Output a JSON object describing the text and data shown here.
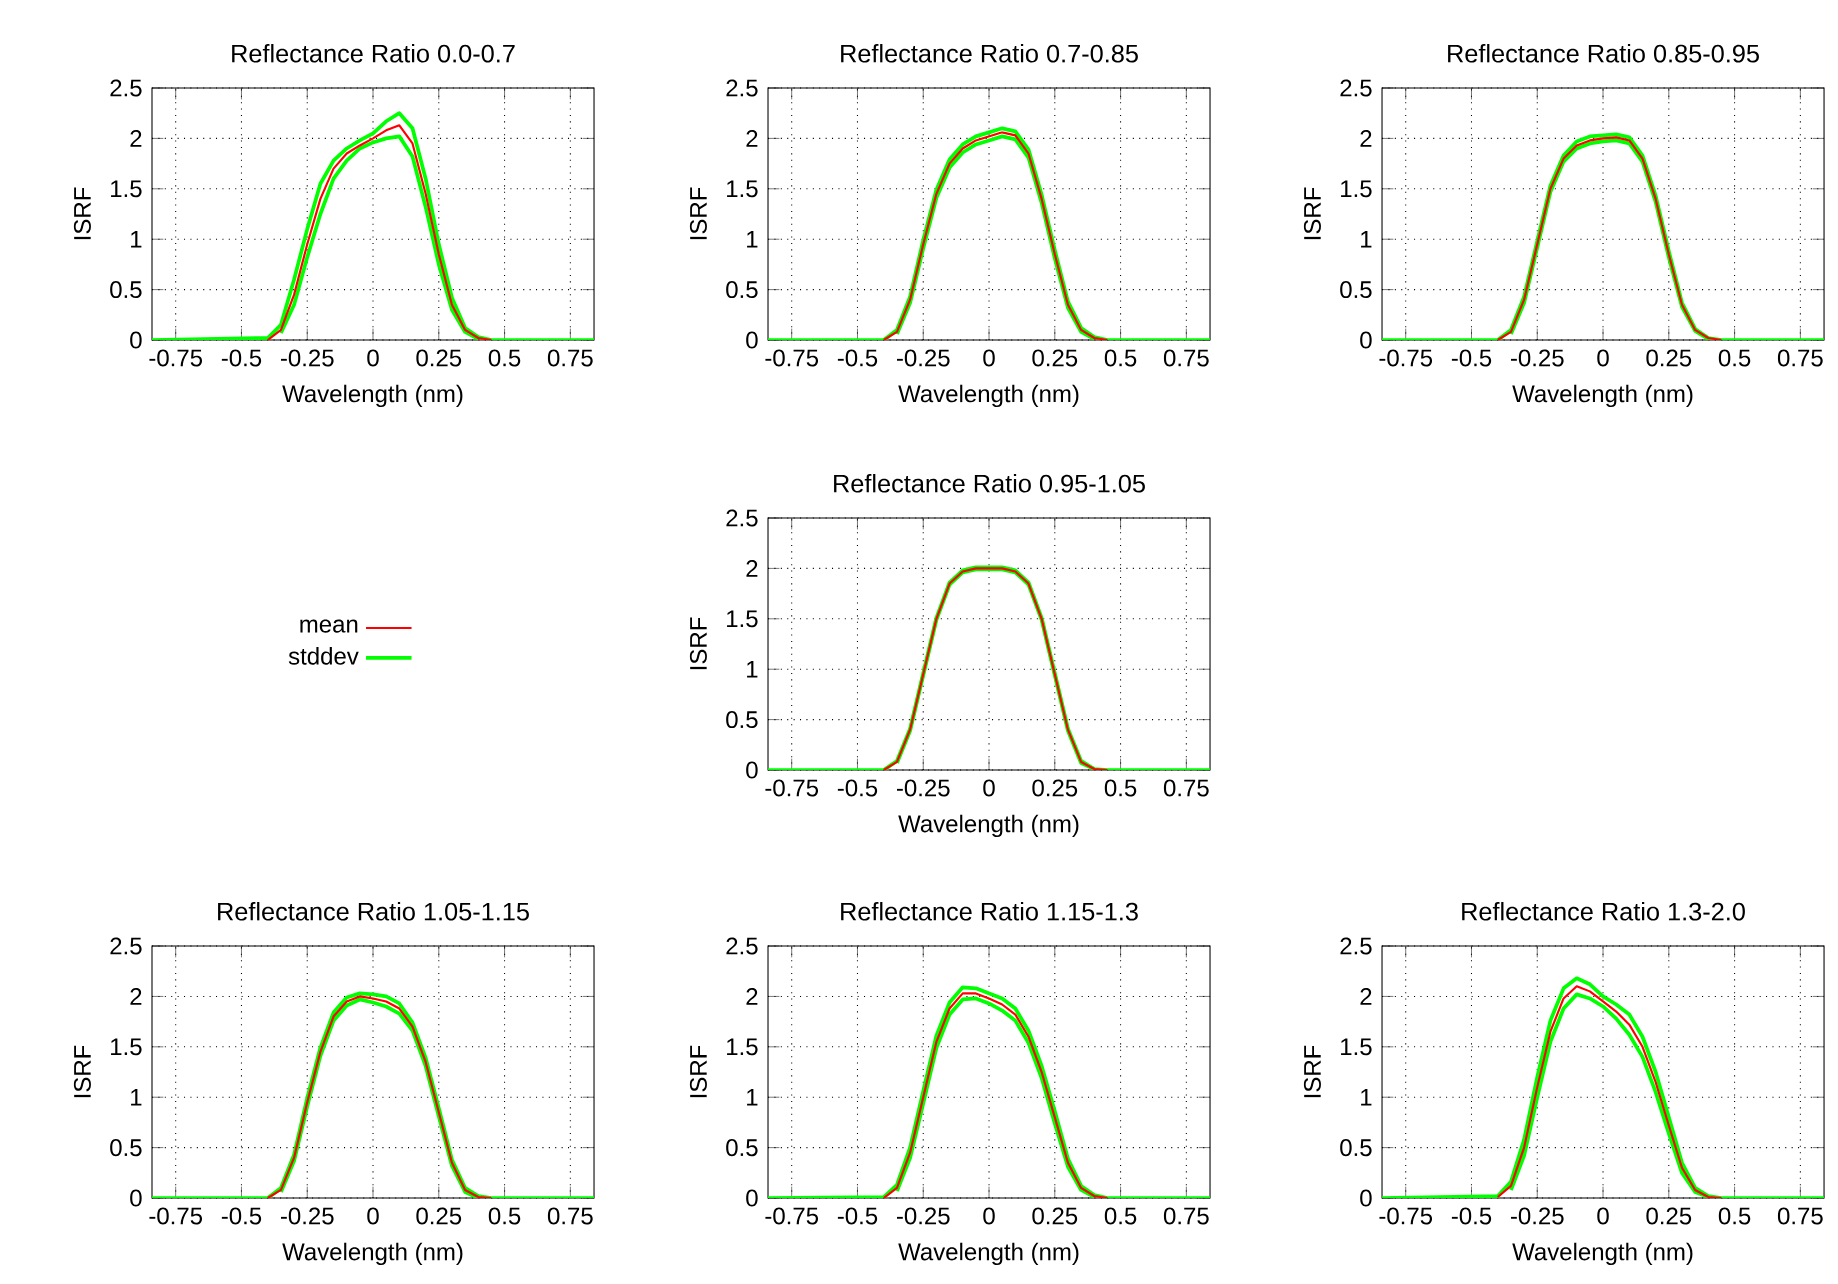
{
  "chart_data": [
    {
      "type": "line",
      "title": "Reflectance Ratio 0.0-0.7",
      "xlabel": "Wavelength (nm)",
      "ylabel": "ISRF",
      "xlim": [
        -0.84,
        0.84
      ],
      "ylim": [
        0,
        2.5
      ],
      "xticks": [
        -0.75,
        -0.5,
        -0.25,
        0,
        0.25,
        0.5,
        0.75
      ],
      "yticks": [
        0,
        0.5,
        1,
        1.5,
        2,
        2.5
      ],
      "grid": true,
      "marker": "none",
      "line_style": "solid",
      "x": [
        -0.84,
        -0.4,
        -0.35,
        -0.3,
        -0.25,
        -0.2,
        -0.15,
        -0.1,
        -0.05,
        0,
        0.05,
        0.1,
        0.15,
        0.2,
        0.25,
        0.3,
        0.35,
        0.4,
        0.45,
        0.84
      ],
      "series": [
        {
          "color": "#ff0000",
          "x": [
            -0.4,
            -0.35,
            -0.3,
            -0.25,
            -0.2,
            -0.15,
            -0.1,
            -0.05,
            0,
            0.05,
            0.1,
            0.15,
            0.2,
            0.25,
            0.3,
            0.35,
            0.4,
            0.45
          ],
          "values": [
            0,
            0.1,
            0.45,
            0.95,
            1.4,
            1.7,
            1.85,
            1.93,
            2.0,
            2.08,
            2.13,
            1.95,
            1.45,
            0.85,
            0.35,
            0.1,
            0.02,
            0
          ]
        },
        {
          "color": "#00ff00",
          "values": [
            0,
            0.02,
            0.15,
            0.6,
            1.1,
            1.55,
            1.78,
            1.9,
            1.98,
            2.05,
            2.17,
            2.25,
            2.1,
            1.6,
            0.95,
            0.42,
            0.12,
            0.03,
            0,
            0
          ]
        },
        {
          "color": "#00ff00",
          "x": [
            -0.35,
            -0.3,
            -0.25,
            -0.2,
            -0.15,
            -0.1,
            -0.05,
            0,
            0.05,
            0.1,
            0.15,
            0.2,
            0.25,
            0.3,
            0.35,
            0.4
          ],
          "values": [
            0.07,
            0.35,
            0.82,
            1.25,
            1.6,
            1.78,
            1.9,
            1.96,
            2.0,
            2.02,
            1.82,
            1.32,
            0.75,
            0.3,
            0.08,
            0.01
          ]
        }
      ]
    },
    {
      "type": "line",
      "title": "Reflectance Ratio 0.7-0.85",
      "xlabel": "Wavelength (nm)",
      "ylabel": "ISRF",
      "xlim": [
        -0.84,
        0.84
      ],
      "ylim": [
        0,
        2.5
      ],
      "xticks": [
        -0.75,
        -0.5,
        -0.25,
        0,
        0.25,
        0.5,
        0.75
      ],
      "yticks": [
        0,
        0.5,
        1,
        1.5,
        2,
        2.5
      ],
      "grid": true,
      "marker": "none",
      "line_style": "solid",
      "x": [
        -0.84,
        -0.4,
        -0.35,
        -0.3,
        -0.25,
        -0.2,
        -0.15,
        -0.1,
        -0.05,
        0,
        0.05,
        0.1,
        0.15,
        0.2,
        0.25,
        0.3,
        0.35,
        0.4,
        0.45,
        0.84
      ],
      "series": [
        {
          "color": "#ff0000",
          "x": [
            -0.4,
            -0.35,
            -0.3,
            -0.25,
            -0.2,
            -0.15,
            -0.1,
            -0.05,
            0,
            0.05,
            0.1,
            0.15,
            0.2,
            0.25,
            0.3,
            0.35,
            0.4,
            0.45
          ],
          "values": [
            0,
            0.08,
            0.4,
            0.95,
            1.45,
            1.75,
            1.9,
            1.98,
            2.02,
            2.06,
            2.03,
            1.85,
            1.4,
            0.85,
            0.35,
            0.1,
            0.02,
            0
          ]
        },
        {
          "color": "#00ff00",
          "values": [
            0,
            0,
            0.1,
            0.43,
            0.99,
            1.49,
            1.79,
            1.94,
            2.02,
            2.06,
            2.1,
            2.07,
            1.89,
            1.44,
            0.89,
            0.38,
            0.12,
            0.03,
            0,
            0
          ]
        },
        {
          "color": "#00ff00",
          "x": [
            -0.35,
            -0.3,
            -0.25,
            -0.2,
            -0.15,
            -0.1,
            -0.05,
            0,
            0.05,
            0.1,
            0.15,
            0.2,
            0.25,
            0.3,
            0.35,
            0.4
          ],
          "values": [
            0.06,
            0.37,
            0.91,
            1.41,
            1.71,
            1.86,
            1.94,
            1.98,
            2.02,
            1.99,
            1.81,
            1.36,
            0.81,
            0.32,
            0.08,
            0.01
          ]
        }
      ]
    },
    {
      "type": "line",
      "title": "Reflectance Ratio 0.85-0.95",
      "xlabel": "Wavelength (nm)",
      "ylabel": "ISRF",
      "xlim": [
        -0.84,
        0.84
      ],
      "ylim": [
        0,
        2.5
      ],
      "xticks": [
        -0.75,
        -0.5,
        -0.25,
        0,
        0.25,
        0.5,
        0.75
      ],
      "yticks": [
        0,
        0.5,
        1,
        1.5,
        2,
        2.5
      ],
      "grid": true,
      "marker": "none",
      "line_style": "solid",
      "x": [
        -0.84,
        -0.4,
        -0.35,
        -0.3,
        -0.25,
        -0.2,
        -0.15,
        -0.1,
        -0.05,
        0,
        0.05,
        0.1,
        0.15,
        0.2,
        0.25,
        0.3,
        0.35,
        0.4,
        0.45,
        0.84
      ],
      "series": [
        {
          "color": "#ff0000",
          "x": [
            -0.4,
            -0.35,
            -0.3,
            -0.25,
            -0.2,
            -0.15,
            -0.1,
            -0.05,
            0,
            0.05,
            0.1,
            0.15,
            0.2,
            0.25,
            0.3,
            0.35,
            0.4,
            0.45
          ],
          "values": [
            0,
            0.08,
            0.4,
            0.95,
            1.5,
            1.8,
            1.93,
            1.98,
            2.0,
            2.01,
            1.98,
            1.8,
            1.4,
            0.85,
            0.35,
            0.1,
            0.02,
            0
          ]
        },
        {
          "color": "#00ff00",
          "values": [
            0,
            0,
            0.1,
            0.43,
            0.98,
            1.53,
            1.83,
            1.97,
            2.02,
            2.03,
            2.04,
            2.01,
            1.83,
            1.43,
            0.88,
            0.37,
            0.11,
            0.02,
            0,
            0
          ]
        },
        {
          "color": "#00ff00",
          "x": [
            -0.35,
            -0.3,
            -0.25,
            -0.2,
            -0.15,
            -0.1,
            -0.05,
            0,
            0.05,
            0.1,
            0.15,
            0.2,
            0.25,
            0.3,
            0.35,
            0.4
          ],
          "values": [
            0.06,
            0.37,
            0.92,
            1.47,
            1.77,
            1.9,
            1.95,
            1.97,
            1.98,
            1.95,
            1.77,
            1.37,
            0.82,
            0.33,
            0.09,
            0.01
          ]
        }
      ]
    },
    {
      "type": "line",
      "title": "Reflectance Ratio 0.95-1.05",
      "xlabel": "Wavelength (nm)",
      "ylabel": "ISRF",
      "xlim": [
        -0.84,
        0.84
      ],
      "ylim": [
        0,
        2.5
      ],
      "xticks": [
        -0.75,
        -0.5,
        -0.25,
        0,
        0.25,
        0.5,
        0.75
      ],
      "yticks": [
        0,
        0.5,
        1,
        1.5,
        2,
        2.5
      ],
      "grid": true,
      "marker": "none",
      "line_style": "solid",
      "legend": "left",
      "x": [
        -0.84,
        -0.4,
        -0.35,
        -0.3,
        -0.25,
        -0.2,
        -0.15,
        -0.1,
        -0.05,
        0,
        0.05,
        0.1,
        0.15,
        0.2,
        0.25,
        0.3,
        0.35,
        0.4,
        0.45,
        0.84
      ],
      "series": [
        {
          "name": "mean",
          "color": "#ff0000",
          "x": [
            -0.4,
            -0.35,
            -0.3,
            -0.25,
            -0.2,
            -0.15,
            -0.1,
            -0.05,
            0,
            0.05,
            0.1,
            0.15,
            0.2,
            0.25,
            0.3,
            0.35,
            0.4,
            0.45
          ],
          "values": [
            0,
            0.08,
            0.4,
            0.95,
            1.5,
            1.85,
            1.97,
            2.0,
            2.0,
            2.0,
            1.97,
            1.85,
            1.5,
            0.95,
            0.4,
            0.08,
            0.01,
            0
          ]
        },
        {
          "name": "stddev",
          "color": "#00ff00",
          "values": [
            0,
            0,
            0.09,
            0.41,
            0.96,
            1.51,
            1.86,
            1.98,
            2.01,
            2.01,
            2.01,
            1.98,
            1.86,
            1.51,
            0.96,
            0.41,
            0.09,
            0.01,
            0,
            0
          ]
        },
        {
          "color": "#00ff00",
          "x": [
            -0.35,
            -0.3,
            -0.25,
            -0.2,
            -0.15,
            -0.1,
            -0.05,
            0,
            0.05,
            0.1,
            0.15,
            0.2,
            0.25,
            0.3,
            0.35,
            0.4
          ],
          "values": [
            0.07,
            0.39,
            0.94,
            1.49,
            1.84,
            1.96,
            1.99,
            1.99,
            1.99,
            1.96,
            1.84,
            1.49,
            0.94,
            0.39,
            0.07,
            0.01
          ]
        }
      ]
    },
    {
      "type": "line",
      "title": "Reflectance Ratio 1.05-1.15",
      "xlabel": "Wavelength (nm)",
      "ylabel": "ISRF",
      "xlim": [
        -0.84,
        0.84
      ],
      "ylim": [
        0,
        2.5
      ],
      "xticks": [
        -0.75,
        -0.5,
        -0.25,
        0,
        0.25,
        0.5,
        0.75
      ],
      "yticks": [
        0,
        0.5,
        1,
        1.5,
        2,
        2.5
      ],
      "grid": true,
      "marker": "none",
      "line_style": "solid",
      "x": [
        -0.84,
        -0.4,
        -0.35,
        -0.3,
        -0.25,
        -0.2,
        -0.15,
        -0.1,
        -0.05,
        0,
        0.05,
        0.1,
        0.15,
        0.2,
        0.25,
        0.3,
        0.35,
        0.4,
        0.45,
        0.84
      ],
      "series": [
        {
          "color": "#ff0000",
          "x": [
            -0.4,
            -0.35,
            -0.3,
            -0.25,
            -0.2,
            -0.15,
            -0.1,
            -0.05,
            0,
            0.05,
            0.1,
            0.15,
            0.2,
            0.25,
            0.3,
            0.35,
            0.4,
            0.45
          ],
          "values": [
            0,
            0.08,
            0.4,
            0.95,
            1.45,
            1.8,
            1.95,
            2.0,
            1.98,
            1.95,
            1.88,
            1.7,
            1.35,
            0.85,
            0.35,
            0.08,
            0.01,
            0
          ]
        },
        {
          "color": "#00ff00",
          "values": [
            0,
            0,
            0.1,
            0.43,
            0.99,
            1.49,
            1.84,
            1.99,
            2.03,
            2.02,
            2.0,
            1.93,
            1.74,
            1.39,
            0.89,
            0.38,
            0.1,
            0.02,
            0,
            0
          ]
        },
        {
          "color": "#00ff00",
          "x": [
            -0.35,
            -0.3,
            -0.25,
            -0.2,
            -0.15,
            -0.1,
            -0.05,
            0,
            0.05,
            0.1,
            0.15,
            0.2,
            0.25,
            0.3,
            0.35,
            0.4
          ],
          "values": [
            0.06,
            0.37,
            0.91,
            1.41,
            1.76,
            1.91,
            1.97,
            1.94,
            1.9,
            1.83,
            1.66,
            1.31,
            0.81,
            0.32,
            0.06,
            0
          ]
        }
      ]
    },
    {
      "type": "line",
      "title": "Reflectance Ratio 1.15-1.3",
      "xlabel": "Wavelength (nm)",
      "ylabel": "ISRF",
      "xlim": [
        -0.84,
        0.84
      ],
      "ylim": [
        0,
        2.5
      ],
      "xticks": [
        -0.75,
        -0.5,
        -0.25,
        0,
        0.25,
        0.5,
        0.75
      ],
      "yticks": [
        0,
        0.5,
        1,
        1.5,
        2,
        2.5
      ],
      "grid": true,
      "marker": "none",
      "line_style": "solid",
      "x": [
        -0.84,
        -0.4,
        -0.35,
        -0.3,
        -0.25,
        -0.2,
        -0.15,
        -0.1,
        -0.05,
        0,
        0.05,
        0.1,
        0.15,
        0.2,
        0.25,
        0.3,
        0.35,
        0.4,
        0.45,
        0.84
      ],
      "series": [
        {
          "color": "#ff0000",
          "x": [
            -0.4,
            -0.35,
            -0.3,
            -0.25,
            -0.2,
            -0.15,
            -0.1,
            -0.05,
            0,
            0.05,
            0.1,
            0.15,
            0.2,
            0.25,
            0.3,
            0.35,
            0.4,
            0.45
          ],
          "values": [
            0,
            0.1,
            0.45,
            1.0,
            1.55,
            1.88,
            2.03,
            2.03,
            1.98,
            1.92,
            1.82,
            1.6,
            1.25,
            0.8,
            0.35,
            0.1,
            0.02,
            0
          ]
        },
        {
          "color": "#00ff00",
          "values": [
            0,
            0.01,
            0.13,
            0.5,
            1.06,
            1.61,
            1.94,
            2.09,
            2.08,
            2.03,
            1.98,
            1.88,
            1.66,
            1.31,
            0.86,
            0.39,
            0.12,
            0.03,
            0,
            0
          ]
        },
        {
          "color": "#00ff00",
          "x": [
            -0.35,
            -0.3,
            -0.25,
            -0.2,
            -0.15,
            -0.1,
            -0.05,
            0,
            0.05,
            0.1,
            0.15,
            0.2,
            0.25,
            0.3,
            0.35,
            0.4
          ],
          "values": [
            0.07,
            0.4,
            0.94,
            1.49,
            1.82,
            1.97,
            1.98,
            1.93,
            1.86,
            1.76,
            1.54,
            1.19,
            0.74,
            0.31,
            0.08,
            0.01
          ]
        }
      ]
    },
    {
      "type": "line",
      "title": "Reflectance Ratio 1.3-2.0",
      "xlabel": "Wavelength (nm)",
      "ylabel": "ISRF",
      "xlim": [
        -0.84,
        0.84
      ],
      "ylim": [
        0,
        2.5
      ],
      "xticks": [
        -0.75,
        -0.5,
        -0.25,
        0,
        0.25,
        0.5,
        0.75
      ],
      "yticks": [
        0,
        0.5,
        1,
        1.5,
        2,
        2.5
      ],
      "grid": true,
      "marker": "none",
      "line_style": "solid",
      "x": [
        -0.84,
        -0.4,
        -0.35,
        -0.3,
        -0.25,
        -0.2,
        -0.15,
        -0.1,
        -0.05,
        0,
        0.05,
        0.1,
        0.15,
        0.2,
        0.25,
        0.3,
        0.35,
        0.4,
        0.45,
        0.84
      ],
      "series": [
        {
          "color": "#ff0000",
          "x": [
            -0.4,
            -0.35,
            -0.3,
            -0.25,
            -0.2,
            -0.15,
            -0.1,
            -0.05,
            0,
            0.05,
            0.1,
            0.15,
            0.2,
            0.25,
            0.3,
            0.35,
            0.4,
            0.45
          ],
          "values": [
            0.01,
            0.12,
            0.5,
            1.1,
            1.65,
            1.98,
            2.1,
            2.05,
            1.95,
            1.85,
            1.72,
            1.5,
            1.15,
            0.72,
            0.3,
            0.08,
            0.01,
            0
          ]
        },
        {
          "color": "#00ff00",
          "values": [
            0,
            0.02,
            0.16,
            0.58,
            1.2,
            1.76,
            2.08,
            2.18,
            2.12,
            2.0,
            1.92,
            1.82,
            1.6,
            1.25,
            0.8,
            0.35,
            0.1,
            0.02,
            0,
            0
          ]
        },
        {
          "color": "#00ff00",
          "x": [
            -0.35,
            -0.3,
            -0.25,
            -0.2,
            -0.15,
            -0.1,
            -0.05,
            0,
            0.05,
            0.1,
            0.15,
            0.2,
            0.25,
            0.3,
            0.35,
            0.4
          ],
          "values": [
            0.08,
            0.42,
            1.0,
            1.55,
            1.88,
            2.02,
            1.98,
            1.9,
            1.78,
            1.62,
            1.4,
            1.05,
            0.64,
            0.25,
            0.06,
            0.01
          ]
        }
      ]
    }
  ]
}
